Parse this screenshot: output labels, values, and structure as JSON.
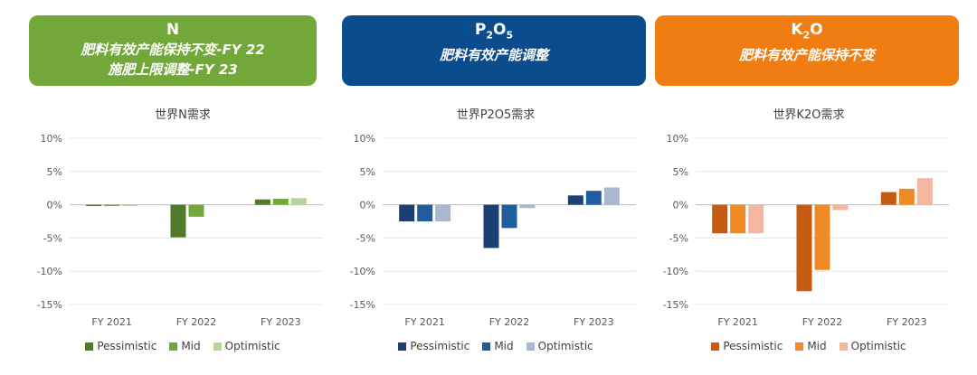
{
  "panels": [
    {
      "header": {
        "title": "N",
        "lines": [
          "肥料有效产能保持不变-FY 22",
          "施肥上限调整-FY 23"
        ],
        "color": "#72a83a"
      },
      "chart_data": {
        "type": "bar",
        "title": "世界N需求",
        "categories": [
          "FY 2021",
          "FY 2022",
          "FY 2023"
        ],
        "series": [
          {
            "name": "Pessimistic",
            "color": "#4e7a2a",
            "values": [
              -0.2,
              -4.9,
              0.8
            ]
          },
          {
            "name": "Mid",
            "color": "#72a83a",
            "values": [
              -0.2,
              -1.8,
              0.9
            ]
          },
          {
            "name": "Optimistic",
            "color": "#b5d69a",
            "values": [
              -0.2,
              0.0,
              1.0
            ]
          }
        ],
        "yticks": [
          "10%",
          "5%",
          "0%",
          "-5%",
          "-10%",
          "-15%"
        ],
        "ylim": [
          -15,
          10
        ]
      }
    },
    {
      "header": {
        "title": "P2O5",
        "lines": [
          "肥料有效产能调整"
        ],
        "color": "#0b4d8c"
      },
      "chart_data": {
        "type": "bar",
        "title": "世界P2O5需求",
        "categories": [
          "FY 2021",
          "FY 2022",
          "FY 2023"
        ],
        "series": [
          {
            "name": "Pessimistic",
            "color": "#1b3f73",
            "values": [
              -2.5,
              -6.5,
              1.4
            ]
          },
          {
            "name": "Mid",
            "color": "#1f5d9e",
            "values": [
              -2.5,
              -3.5,
              2.1
            ]
          },
          {
            "name": "Optimistic",
            "color": "#a9b7cf",
            "values": [
              -2.5,
              -0.5,
              2.6
            ]
          }
        ],
        "yticks": [
          "10%",
          "5%",
          "0%",
          "-5%",
          "-10%",
          "-15%"
        ],
        "ylim": [
          -15,
          10
        ]
      }
    },
    {
      "header": {
        "title": "K2O",
        "lines": [
          "肥料有效产能保持不变"
        ],
        "color": "#ef7d12"
      },
      "chart_data": {
        "type": "bar",
        "title": "世界K2O需求",
        "categories": [
          "FY 2021",
          "FY 2022",
          "FY 2023"
        ],
        "series": [
          {
            "name": "Pessimistic",
            "color": "#c55a11",
            "values": [
              -4.3,
              -13.0,
              1.9
            ]
          },
          {
            "name": "Mid",
            "color": "#f08a24",
            "values": [
              -4.3,
              -9.8,
              2.4
            ]
          },
          {
            "name": "Optimistic",
            "color": "#f5b6a0",
            "values": [
              -4.3,
              -0.8,
              4.0
            ]
          }
        ],
        "yticks": [
          "10%",
          "5%",
          "0%",
          "-5%",
          "-10%",
          "-15%"
        ],
        "ylim": [
          -15,
          10
        ]
      }
    }
  ]
}
